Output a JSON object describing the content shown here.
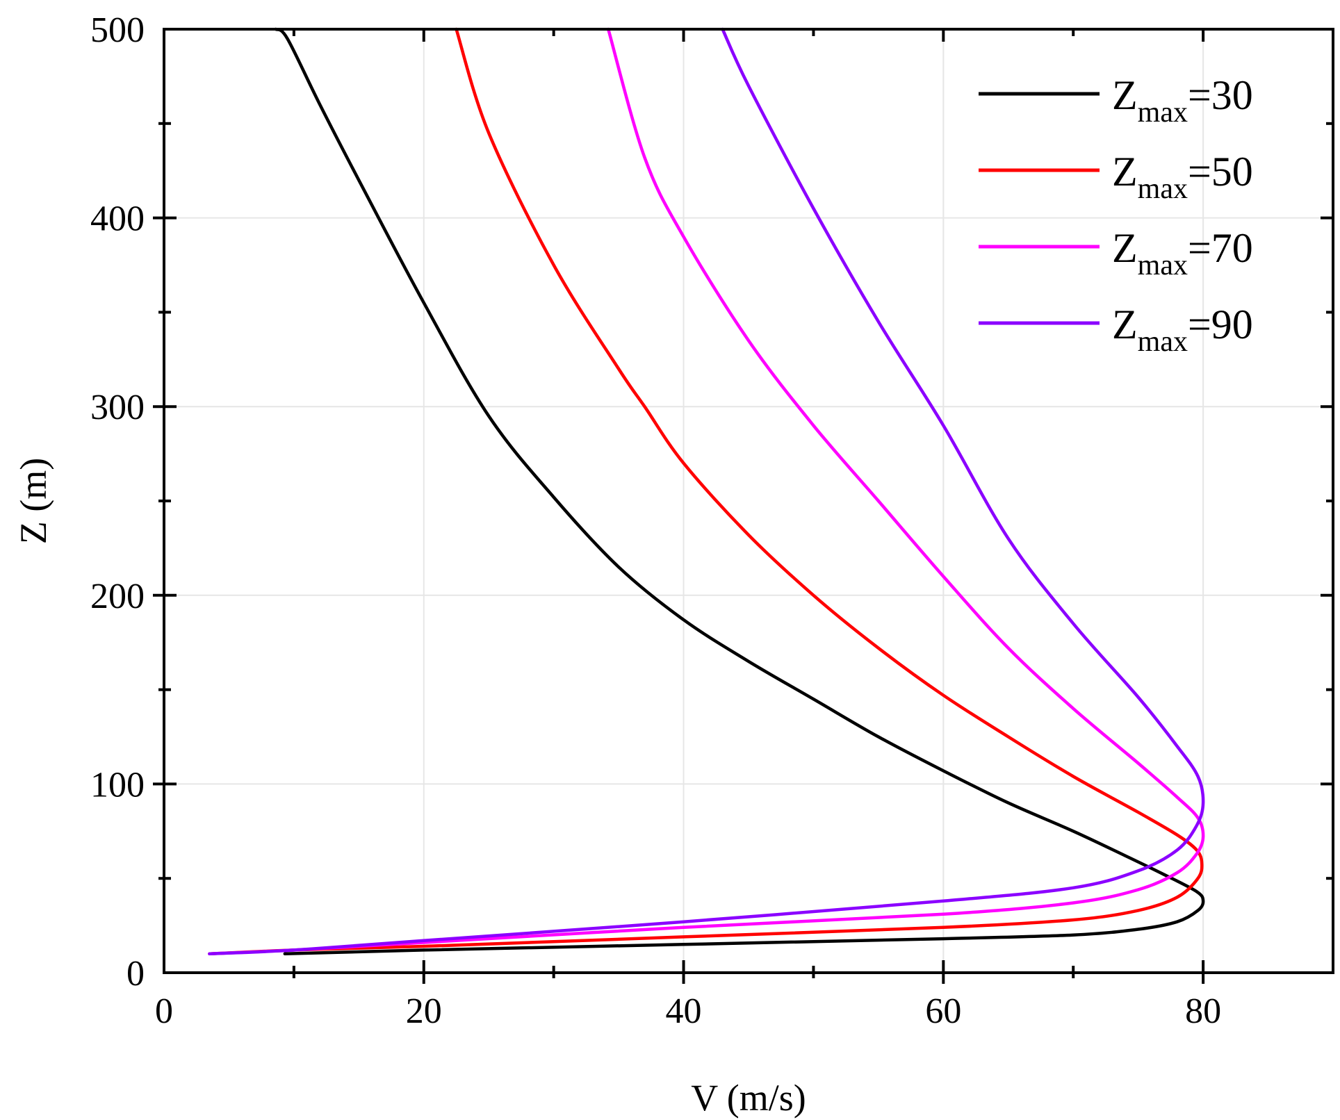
{
  "chart_data": {
    "type": "line",
    "title": "",
    "xlabel": "V (m/s)",
    "ylabel": "Z (m)",
    "xlim": [
      0,
      90
    ],
    "ylim": [
      0,
      500
    ],
    "xticks": [
      0,
      20,
      40,
      60,
      80
    ],
    "yticks": [
      0,
      100,
      200,
      300,
      400,
      500
    ],
    "xtick_labels": [
      "0",
      "20",
      "40",
      "60",
      "80"
    ],
    "ytick_labels": [
      "0",
      "100",
      "200",
      "300",
      "400",
      "500"
    ],
    "grid": true,
    "legend_position": "top-right",
    "series": [
      {
        "name": "Zmax=30",
        "legend_main": "Z",
        "legend_sub": "max",
        "legend_value": "=30",
        "color": "#000000",
        "points": [
          [
            9.3,
            10
          ],
          [
            20,
            12
          ],
          [
            40,
            15
          ],
          [
            60,
            18
          ],
          [
            70,
            20
          ],
          [
            75,
            23
          ],
          [
            78,
            27
          ],
          [
            79.6,
            33
          ],
          [
            80,
            38
          ],
          [
            79.5,
            43
          ],
          [
            77,
            52
          ],
          [
            74,
            62
          ],
          [
            70,
            75
          ],
          [
            65,
            90
          ],
          [
            60,
            107
          ],
          [
            55,
            125
          ],
          [
            50,
            145
          ],
          [
            45,
            165
          ],
          [
            40,
            187
          ],
          [
            35,
            215
          ],
          [
            30,
            252
          ],
          [
            25,
            295
          ],
          [
            20,
            355
          ],
          [
            15,
            420
          ],
          [
            12,
            460
          ],
          [
            9.5,
            495
          ],
          [
            8.6,
            500
          ]
        ]
      },
      {
        "name": "Zmax=50",
        "legend_main": "Z",
        "legend_sub": "max",
        "legend_value": "=50",
        "color": "#ff0000",
        "points": [
          [
            3.5,
            10
          ],
          [
            10,
            12
          ],
          [
            20,
            14
          ],
          [
            40,
            19
          ],
          [
            60,
            24
          ],
          [
            70,
            28
          ],
          [
            75,
            33
          ],
          [
            78,
            40
          ],
          [
            79.6,
            50
          ],
          [
            79.9,
            58
          ],
          [
            79.5,
            65
          ],
          [
            78,
            73
          ],
          [
            75,
            85
          ],
          [
            70,
            104
          ],
          [
            65,
            125
          ],
          [
            60,
            147
          ],
          [
            55,
            172
          ],
          [
            50,
            200
          ],
          [
            45,
            232
          ],
          [
            40,
            270
          ],
          [
            37,
            300
          ],
          [
            35,
            320
          ],
          [
            30,
            375
          ],
          [
            25,
            445
          ],
          [
            22.5,
            500
          ]
        ]
      },
      {
        "name": "Zmax=70",
        "legend_main": "Z",
        "legend_sub": "max",
        "legend_value": "=70",
        "color": "#ff00ff",
        "points": [
          [
            3.5,
            10
          ],
          [
            10,
            12
          ],
          [
            20,
            16
          ],
          [
            40,
            24
          ],
          [
            60,
            31
          ],
          [
            70,
            37
          ],
          [
            75,
            44
          ],
          [
            78,
            53
          ],
          [
            79.5,
            63
          ],
          [
            80,
            72
          ],
          [
            79.6,
            82
          ],
          [
            78,
            93
          ],
          [
            75,
            111
          ],
          [
            70,
            140
          ],
          [
            65,
            172
          ],
          [
            60,
            210
          ],
          [
            55,
            250
          ],
          [
            50,
            290
          ],
          [
            45,
            335
          ],
          [
            40,
            390
          ],
          [
            37,
            432
          ],
          [
            34.2,
            500
          ]
        ]
      },
      {
        "name": "Zmax=90",
        "legend_main": "Z",
        "legend_sub": "max",
        "legend_value": "=90",
        "color": "#8b00ff",
        "points": [
          [
            3.5,
            10
          ],
          [
            10,
            12
          ],
          [
            20,
            17
          ],
          [
            40,
            27
          ],
          [
            60,
            38
          ],
          [
            70,
            45
          ],
          [
            75,
            54
          ],
          [
            78,
            65
          ],
          [
            79.5,
            78
          ],
          [
            80,
            90
          ],
          [
            79.6,
            104
          ],
          [
            78,
            120
          ],
          [
            75,
            146
          ],
          [
            70,
            185
          ],
          [
            65,
            230
          ],
          [
            60,
            290
          ],
          [
            55,
            345
          ],
          [
            50,
            405
          ],
          [
            45,
            470
          ],
          [
            43,
            500
          ]
        ]
      }
    ]
  }
}
